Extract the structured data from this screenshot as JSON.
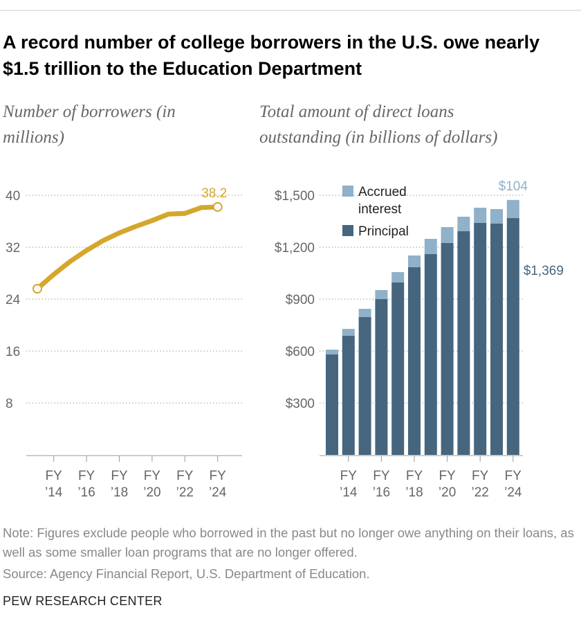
{
  "title": "A record number of college borrowers in the U.S. owe nearly $1.5 trillion to the Education Department",
  "note": "Note: Figures exclude people who borrowed in the past but no longer owe anything on their loans, as well as some smaller loan programs that are no longer offered.",
  "source": "Source: Agency Financial Report, U.S. Department of Education.",
  "credit": "PEW RESEARCH CENTER",
  "chart_data": [
    {
      "type": "line",
      "title": "Number of borrowers (in millions)",
      "categories": [
        null,
        "FY ’14",
        null,
        "FY ’16",
        null,
        "FY ’18",
        null,
        "FY ’20",
        null,
        "FY ’22",
        null,
        "FY ’24"
      ],
      "values": [
        25.6,
        27.8,
        29.8,
        31.5,
        33.0,
        34.2,
        35.2,
        36.1,
        37.1,
        37.2,
        38.1,
        38.2
      ],
      "color": "#d4a72c",
      "ylim": [
        0,
        40
      ],
      "yticks": [
        8,
        16,
        24,
        32,
        40
      ],
      "grid": true
    },
    {
      "type": "bar",
      "stacked": true,
      "title": "Total amount of direct loans outstanding (in billions of dollars)",
      "categories": [
        null,
        "FY ’14",
        null,
        "FY ’16",
        null,
        "FY ’18",
        null,
        "FY ’20",
        null,
        "FY ’22",
        null,
        "FY ’24"
      ],
      "series": [
        {
          "name": "Principal",
          "color": "#46667f",
          "values": [
            580,
            688,
            796,
            900,
            996,
            1084,
            1160,
            1224,
            1292,
            1340,
            1336,
            1369
          ],
          "value_labels": [
            null,
            null,
            null,
            null,
            null,
            null,
            null,
            null,
            null,
            null,
            null,
            "$1,369"
          ]
        },
        {
          "name": "Accrued interest",
          "color": "#8fb1c9",
          "values": [
            28,
            40,
            48,
            52,
            60,
            68,
            88,
            92,
            84,
            88,
            84,
            104
          ],
          "value_labels": [
            null,
            null,
            null,
            null,
            null,
            null,
            null,
            null,
            null,
            null,
            null,
            "$104"
          ]
        }
      ],
      "ylim": [
        0,
        1500
      ],
      "yticks": [
        {
          "value": 300,
          "label": "$300"
        },
        {
          "value": 600,
          "label": "$600"
        },
        {
          "value": 900,
          "label": "$900"
        },
        {
          "value": 1200,
          "label": "$1,200"
        },
        {
          "value": 1500,
          "label": "$1,500"
        }
      ],
      "grid": true
    }
  ]
}
